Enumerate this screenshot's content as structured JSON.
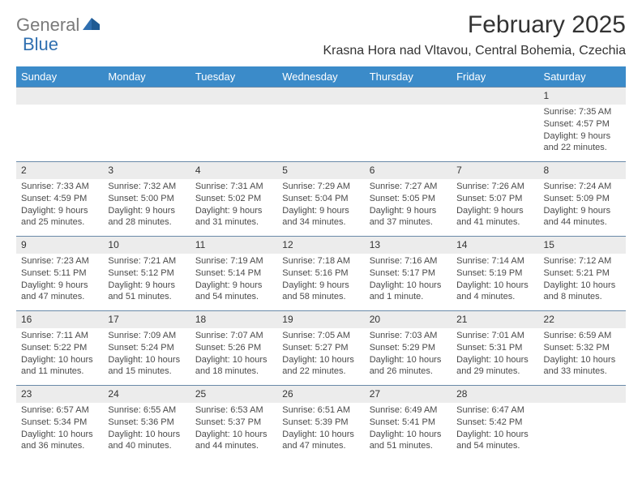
{
  "logo": {
    "text1": "General",
    "text2": "Blue"
  },
  "title": "February 2025",
  "location": "Krasna Hora nad Vltavou, Central Bohemia, Czechia",
  "colors": {
    "header_bg": "#3b8bc9",
    "header_text": "#ffffff",
    "daynum_bg": "#ececec",
    "row_border": "#6a8aa8",
    "body_bg": "#ffffff",
    "text": "#4a4a4a",
    "logo_gray": "#7a7a7a",
    "logo_blue": "#2f6fb0"
  },
  "weekdays": [
    "Sunday",
    "Monday",
    "Tuesday",
    "Wednesday",
    "Thursday",
    "Friday",
    "Saturday"
  ],
  "weeks": [
    {
      "nums": [
        "",
        "",
        "",
        "",
        "",
        "",
        "1"
      ],
      "cells": [
        null,
        null,
        null,
        null,
        null,
        null,
        {
          "sunrise": "Sunrise: 7:35 AM",
          "sunset": "Sunset: 4:57 PM",
          "d1": "Daylight: 9 hours",
          "d2": "and 22 minutes."
        }
      ]
    },
    {
      "nums": [
        "2",
        "3",
        "4",
        "5",
        "6",
        "7",
        "8"
      ],
      "cells": [
        {
          "sunrise": "Sunrise: 7:33 AM",
          "sunset": "Sunset: 4:59 PM",
          "d1": "Daylight: 9 hours",
          "d2": "and 25 minutes."
        },
        {
          "sunrise": "Sunrise: 7:32 AM",
          "sunset": "Sunset: 5:00 PM",
          "d1": "Daylight: 9 hours",
          "d2": "and 28 minutes."
        },
        {
          "sunrise": "Sunrise: 7:31 AM",
          "sunset": "Sunset: 5:02 PM",
          "d1": "Daylight: 9 hours",
          "d2": "and 31 minutes."
        },
        {
          "sunrise": "Sunrise: 7:29 AM",
          "sunset": "Sunset: 5:04 PM",
          "d1": "Daylight: 9 hours",
          "d2": "and 34 minutes."
        },
        {
          "sunrise": "Sunrise: 7:27 AM",
          "sunset": "Sunset: 5:05 PM",
          "d1": "Daylight: 9 hours",
          "d2": "and 37 minutes."
        },
        {
          "sunrise": "Sunrise: 7:26 AM",
          "sunset": "Sunset: 5:07 PM",
          "d1": "Daylight: 9 hours",
          "d2": "and 41 minutes."
        },
        {
          "sunrise": "Sunrise: 7:24 AM",
          "sunset": "Sunset: 5:09 PM",
          "d1": "Daylight: 9 hours",
          "d2": "and 44 minutes."
        }
      ]
    },
    {
      "nums": [
        "9",
        "10",
        "11",
        "12",
        "13",
        "14",
        "15"
      ],
      "cells": [
        {
          "sunrise": "Sunrise: 7:23 AM",
          "sunset": "Sunset: 5:11 PM",
          "d1": "Daylight: 9 hours",
          "d2": "and 47 minutes."
        },
        {
          "sunrise": "Sunrise: 7:21 AM",
          "sunset": "Sunset: 5:12 PM",
          "d1": "Daylight: 9 hours",
          "d2": "and 51 minutes."
        },
        {
          "sunrise": "Sunrise: 7:19 AM",
          "sunset": "Sunset: 5:14 PM",
          "d1": "Daylight: 9 hours",
          "d2": "and 54 minutes."
        },
        {
          "sunrise": "Sunrise: 7:18 AM",
          "sunset": "Sunset: 5:16 PM",
          "d1": "Daylight: 9 hours",
          "d2": "and 58 minutes."
        },
        {
          "sunrise": "Sunrise: 7:16 AM",
          "sunset": "Sunset: 5:17 PM",
          "d1": "Daylight: 10 hours",
          "d2": "and 1 minute."
        },
        {
          "sunrise": "Sunrise: 7:14 AM",
          "sunset": "Sunset: 5:19 PM",
          "d1": "Daylight: 10 hours",
          "d2": "and 4 minutes."
        },
        {
          "sunrise": "Sunrise: 7:12 AM",
          "sunset": "Sunset: 5:21 PM",
          "d1": "Daylight: 10 hours",
          "d2": "and 8 minutes."
        }
      ]
    },
    {
      "nums": [
        "16",
        "17",
        "18",
        "19",
        "20",
        "21",
        "22"
      ],
      "cells": [
        {
          "sunrise": "Sunrise: 7:11 AM",
          "sunset": "Sunset: 5:22 PM",
          "d1": "Daylight: 10 hours",
          "d2": "and 11 minutes."
        },
        {
          "sunrise": "Sunrise: 7:09 AM",
          "sunset": "Sunset: 5:24 PM",
          "d1": "Daylight: 10 hours",
          "d2": "and 15 minutes."
        },
        {
          "sunrise": "Sunrise: 7:07 AM",
          "sunset": "Sunset: 5:26 PM",
          "d1": "Daylight: 10 hours",
          "d2": "and 18 minutes."
        },
        {
          "sunrise": "Sunrise: 7:05 AM",
          "sunset": "Sunset: 5:27 PM",
          "d1": "Daylight: 10 hours",
          "d2": "and 22 minutes."
        },
        {
          "sunrise": "Sunrise: 7:03 AM",
          "sunset": "Sunset: 5:29 PM",
          "d1": "Daylight: 10 hours",
          "d2": "and 26 minutes."
        },
        {
          "sunrise": "Sunrise: 7:01 AM",
          "sunset": "Sunset: 5:31 PM",
          "d1": "Daylight: 10 hours",
          "d2": "and 29 minutes."
        },
        {
          "sunrise": "Sunrise: 6:59 AM",
          "sunset": "Sunset: 5:32 PM",
          "d1": "Daylight: 10 hours",
          "d2": "and 33 minutes."
        }
      ]
    },
    {
      "nums": [
        "23",
        "24",
        "25",
        "26",
        "27",
        "28",
        ""
      ],
      "cells": [
        {
          "sunrise": "Sunrise: 6:57 AM",
          "sunset": "Sunset: 5:34 PM",
          "d1": "Daylight: 10 hours",
          "d2": "and 36 minutes."
        },
        {
          "sunrise": "Sunrise: 6:55 AM",
          "sunset": "Sunset: 5:36 PM",
          "d1": "Daylight: 10 hours",
          "d2": "and 40 minutes."
        },
        {
          "sunrise": "Sunrise: 6:53 AM",
          "sunset": "Sunset: 5:37 PM",
          "d1": "Daylight: 10 hours",
          "d2": "and 44 minutes."
        },
        {
          "sunrise": "Sunrise: 6:51 AM",
          "sunset": "Sunset: 5:39 PM",
          "d1": "Daylight: 10 hours",
          "d2": "and 47 minutes."
        },
        {
          "sunrise": "Sunrise: 6:49 AM",
          "sunset": "Sunset: 5:41 PM",
          "d1": "Daylight: 10 hours",
          "d2": "and 51 minutes."
        },
        {
          "sunrise": "Sunrise: 6:47 AM",
          "sunset": "Sunset: 5:42 PM",
          "d1": "Daylight: 10 hours",
          "d2": "and 54 minutes."
        },
        null
      ]
    }
  ]
}
